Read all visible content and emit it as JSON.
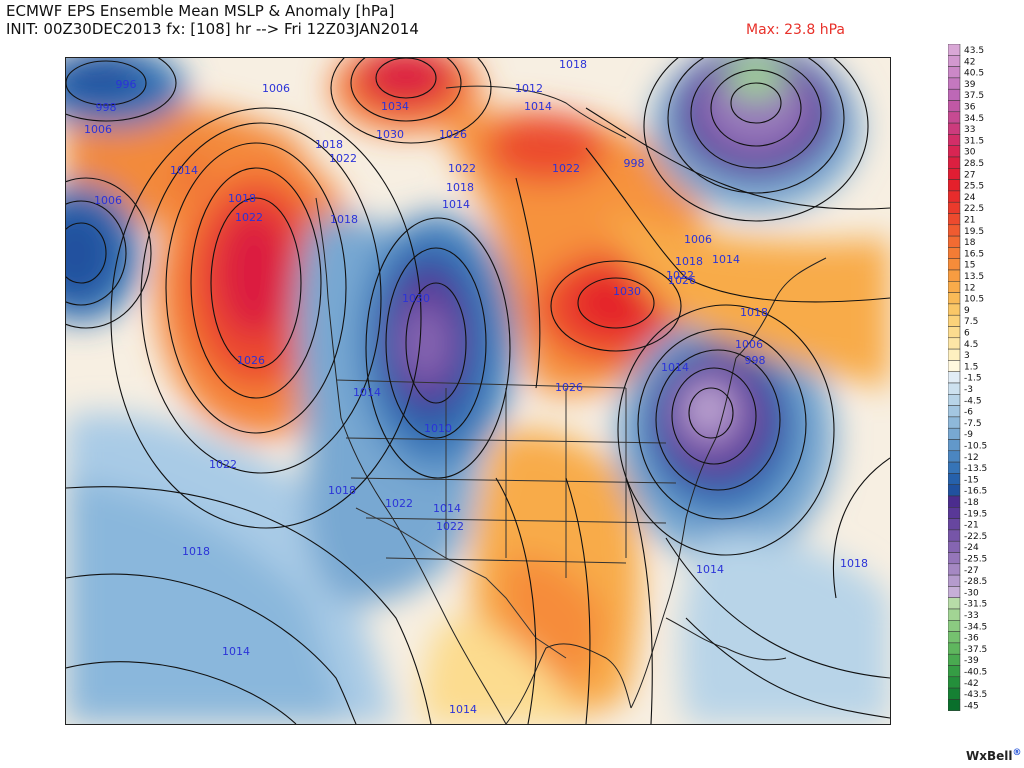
{
  "header": {
    "title": "ECMWF EPS Ensemble Mean MSLP & Anomaly [hPa]",
    "init": "INIT: 00Z30DEC2013 fx: [108] hr --> Fri 12Z03JAN2014",
    "max_label": "Max: 23.8 hPa"
  },
  "isobar_labels": [
    {
      "text": "996"
    },
    {
      "text": "998"
    },
    {
      "text": "1006"
    },
    {
      "text": "1006"
    },
    {
      "text": "1014"
    },
    {
      "text": "1018"
    },
    {
      "text": "1022"
    },
    {
      "text": "1026"
    },
    {
      "text": "1022"
    },
    {
      "text": "1018"
    },
    {
      "text": "1014"
    },
    {
      "text": "1006"
    },
    {
      "text": "1018"
    },
    {
      "text": "1022"
    },
    {
      "text": "1034"
    },
    {
      "text": "1030"
    },
    {
      "text": "1026"
    },
    {
      "text": "1022"
    },
    {
      "text": "1018"
    },
    {
      "text": "1014"
    },
    {
      "text": "1018"
    },
    {
      "text": "1018"
    },
    {
      "text": "1012"
    },
    {
      "text": "1014"
    },
    {
      "text": "1022"
    },
    {
      "text": "998"
    },
    {
      "text": "1030"
    },
    {
      "text": "1014"
    },
    {
      "text": "1010"
    },
    {
      "text": "1022"
    },
    {
      "text": "1018"
    },
    {
      "text": "1014"
    },
    {
      "text": "1022"
    },
    {
      "text": "1026"
    },
    {
      "text": "1030"
    },
    {
      "text": "1022"
    },
    {
      "text": "1018"
    },
    {
      "text": "1006"
    },
    {
      "text": "1014"
    },
    {
      "text": "1018"
    },
    {
      "text": "1006"
    },
    {
      "text": "998"
    },
    {
      "text": "1014"
    },
    {
      "text": "1026"
    },
    {
      "text": "1014"
    },
    {
      "text": "1018"
    },
    {
      "text": "1014"
    }
  ],
  "legend": {
    "values": [
      "43.5",
      "42",
      "40.5",
      "39",
      "37.5",
      "36",
      "34.5",
      "33",
      "31.5",
      "30",
      "28.5",
      "27",
      "25.5",
      "24",
      "22.5",
      "21",
      "19.5",
      "18",
      "16.5",
      "15",
      "13.5",
      "12",
      "10.5",
      "9",
      "7.5",
      "6",
      "4.5",
      "3",
      "1.5",
      "-1.5",
      "-3",
      "-4.5",
      "-6",
      "-7.5",
      "-9",
      "-10.5",
      "-12",
      "-13.5",
      "-15",
      "-16.5",
      "-18",
      "-19.5",
      "-21",
      "-22.5",
      "-24",
      "-25.5",
      "-27",
      "-28.5",
      "-30",
      "-31.5",
      "-33",
      "-34.5",
      "-36",
      "-37.5",
      "-39",
      "-40.5",
      "-42",
      "-43.5",
      "-45"
    ],
    "colors": [
      "#d9a7d6",
      "#d298cf",
      "#cb88c7",
      "#c478bf",
      "#bd68b6",
      "#c058a5",
      "#c64a92",
      "#cc3b7d",
      "#d22e68",
      "#d82553",
      "#dc1f40",
      "#e01d33",
      "#e4202b",
      "#e72c2c",
      "#ea3a2c",
      "#ed4a2e",
      "#f05b30",
      "#f26b32",
      "#f47c35",
      "#f68c3a",
      "#f79c41",
      "#f8ab4a",
      "#f9ba57",
      "#fac767",
      "#fbd27a",
      "#fcdc8f",
      "#fde6a6",
      "#fef0c0",
      "#fff8de",
      "#e2edf6",
      "#cde1ef",
      "#b8d4e8",
      "#a3c6e1",
      "#8eb8da",
      "#78a8d2",
      "#6298ca",
      "#4b86c1",
      "#3674b7",
      "#2661ab",
      "#20519f",
      "#4b2c8e",
      "#593897",
      "#67469f",
      "#7655a8",
      "#8565b1",
      "#9576ba",
      "#a588c3",
      "#b59bcd",
      "#c6afd7",
      "#b8dca8",
      "#a2d494",
      "#8bcb81",
      "#75c16f",
      "#5fb65e",
      "#49aa50",
      "#359d44",
      "#248f3b",
      "#158033",
      "#0a6f2c"
    ]
  },
  "brand": {
    "name": "WxBell",
    "mark": "®"
  }
}
